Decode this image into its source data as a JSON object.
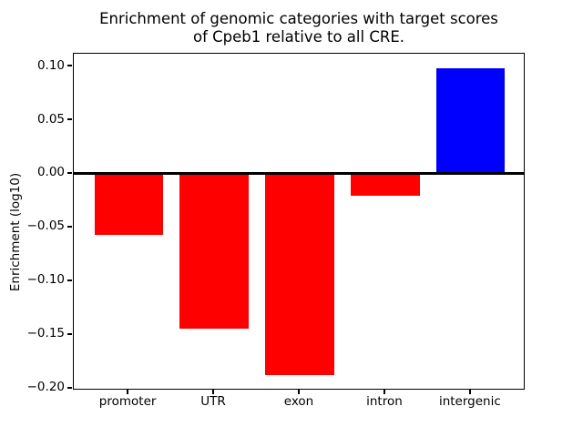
{
  "chart_data": {
    "type": "bar",
    "title": "Enrichment of genomic categories with target scores of Cpeb1 relative to all CRE.",
    "title_lines": [
      "Enrichment of genomic categories with target scores",
      "of Cpeb1 relative to all CRE."
    ],
    "xlabel": "",
    "ylabel": "Enrichment (log10)",
    "categories": [
      "promoter",
      "UTR",
      "exon",
      "intron",
      "intergenic"
    ],
    "values": [
      -0.057,
      -0.144,
      -0.187,
      -0.02,
      0.098
    ],
    "bar_colors": [
      "#ff0000",
      "#ff0000",
      "#ff0000",
      "#ff0000",
      "#0000ff"
    ],
    "bar_width": 0.8,
    "ylim": [
      -0.2013,
      0.1123
    ],
    "xlim": [
      -0.64,
      4.64
    ],
    "yticks": [
      0.1,
      0.05,
      0.0,
      -0.05,
      -0.1,
      -0.15,
      -0.2
    ],
    "ytick_labels": [
      "0.10",
      "0.05",
      "0.00",
      "−0.05",
      "−0.10",
      "−0.15",
      "−0.20"
    ],
    "zero_line": true,
    "grid": false,
    "legend": null,
    "colors": {
      "negative_bar": "#ff0000",
      "positive_bar": "#0000ff",
      "axis": "#000000",
      "background": "#ffffff"
    }
  }
}
